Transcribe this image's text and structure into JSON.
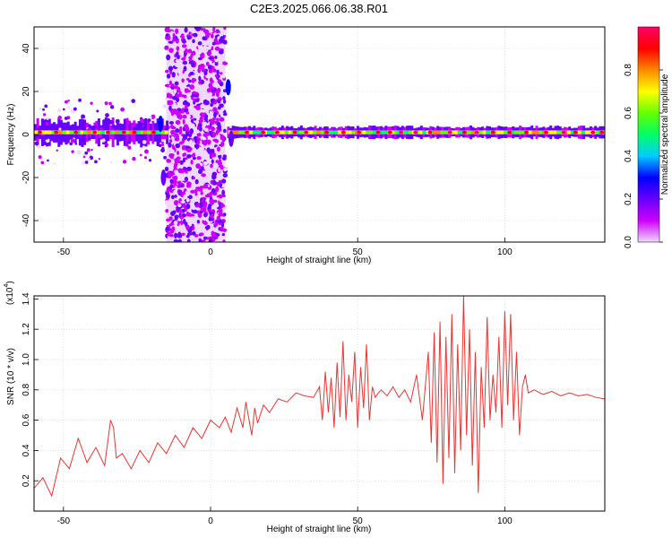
{
  "page_title": "C2E3.2025.066.06.38.R01",
  "chart_data": [
    {
      "type": "heatmap",
      "xlabel": "Height of straight line (km)",
      "ylabel": "Frequency (Hz)",
      "xlim": [
        -60,
        134
      ],
      "ylim": [
        -50,
        50
      ],
      "xticks": [
        -50,
        0,
        50,
        100
      ],
      "yticks": [
        -40,
        -20,
        0,
        20,
        40
      ],
      "grid": true,
      "colorbar": {
        "label": "Normalized spectral amplitude",
        "range": [
          0.0,
          1.0
        ],
        "ticks": [
          0.0,
          0.2,
          0.4,
          0.6,
          0.8
        ],
        "tick_labels": [
          "0.0",
          "0.2",
          "0.4",
          "0.6",
          "0.8"
        ],
        "colormap": "rainbow",
        "colors": [
          "#f0d8ff",
          "#cc00ff",
          "#6600ff",
          "#0000ff",
          "#00ccff",
          "#00ff66",
          "#66ff00",
          "#ffff00",
          "#ff8800",
          "#ff0000",
          "#ff0066"
        ]
      },
      "features": {
        "main_line_frequency_hz": 1,
        "noisy_band_x_km": [
          -15,
          5
        ],
        "feature_points": [
          {
            "x": -17,
            "y": 5,
            "value": 0.3
          },
          {
            "x": -16,
            "y": -20,
            "value": 0.25
          },
          {
            "x": 6,
            "y": 22,
            "value": 0.3
          },
          {
            "x": 7,
            "y": -2,
            "value": 0.25
          }
        ]
      }
    },
    {
      "type": "line",
      "xlabel": "Height of straight line (km)",
      "ylabel": "SNR (10 * v/v)",
      "scale_label": "(x10",
      "scale_exponent": "4",
      "xlim": [
        -60,
        134
      ],
      "ylim": [
        0.0,
        1.42
      ],
      "xticks": [
        -50,
        0,
        50,
        100
      ],
      "yticks": [
        0.2,
        0.4,
        0.6,
        0.8,
        1.0,
        1.2,
        1.4
      ],
      "ytick_labels": [
        "0.2",
        "0.4",
        "0.6",
        "0.8",
        "1.0",
        "1.2",
        "1.4"
      ],
      "grid": true,
      "line_color": "#ee3333",
      "series": [
        {
          "x": [
            -60,
            -57,
            -54,
            -51,
            -48,
            -45,
            -42,
            -39,
            -36,
            -34,
            -33,
            -32,
            -30,
            -27,
            -24,
            -21,
            -18,
            -15,
            -12,
            -9,
            -6,
            -3,
            0,
            3,
            5,
            7,
            9,
            11,
            12,
            14,
            15,
            16,
            18,
            20,
            23,
            26,
            29,
            32,
            35,
            37,
            38,
            39,
            40,
            41,
            42,
            43,
            44,
            45,
            46,
            47,
            48,
            49,
            50,
            51,
            52,
            53,
            54,
            55,
            56,
            57,
            58,
            60,
            62,
            64,
            66,
            68,
            70,
            72,
            74,
            75,
            76,
            77,
            78,
            79,
            80,
            81,
            82,
            83,
            84,
            85,
            86,
            87,
            88,
            89,
            90,
            91,
            92,
            93,
            94,
            95,
            96,
            97,
            98,
            99,
            100,
            101,
            102,
            103,
            104,
            105,
            106,
            107,
            108,
            110,
            113,
            116,
            119,
            122,
            125,
            128,
            131,
            134
          ],
          "values": [
            0.15,
            0.22,
            0.1,
            0.35,
            0.28,
            0.48,
            0.32,
            0.42,
            0.3,
            0.6,
            0.55,
            0.35,
            0.38,
            0.28,
            0.4,
            0.32,
            0.45,
            0.38,
            0.5,
            0.42,
            0.55,
            0.48,
            0.6,
            0.55,
            0.62,
            0.52,
            0.68,
            0.55,
            0.72,
            0.5,
            0.68,
            0.58,
            0.7,
            0.65,
            0.74,
            0.72,
            0.78,
            0.76,
            0.75,
            0.82,
            0.6,
            0.92,
            0.65,
            0.88,
            0.55,
            0.98,
            0.62,
            1.12,
            0.6,
            0.9,
            0.72,
            1.05,
            0.55,
            0.95,
            0.68,
            1.1,
            0.6,
            0.82,
            0.75,
            0.78,
            0.8,
            0.76,
            0.82,
            0.75,
            0.8,
            0.72,
            0.9,
            0.6,
            1.05,
            0.45,
            1.18,
            0.32,
            1.25,
            0.18,
            1.15,
            0.35,
            1.3,
            0.25,
            1.1,
            0.4,
            1.42,
            0.5,
            1.2,
            0.3,
            1.05,
            0.12,
            0.95,
            0.55,
            1.28,
            0.6,
            0.9,
            0.65,
            1.15,
            0.55,
            1.32,
            0.7,
            1.3,
            0.6,
            1.05,
            0.5,
            0.82,
            0.9,
            0.78,
            0.8,
            0.77,
            0.79,
            0.76,
            0.78,
            0.76,
            0.77,
            0.75,
            0.74
          ]
        }
      ]
    }
  ]
}
